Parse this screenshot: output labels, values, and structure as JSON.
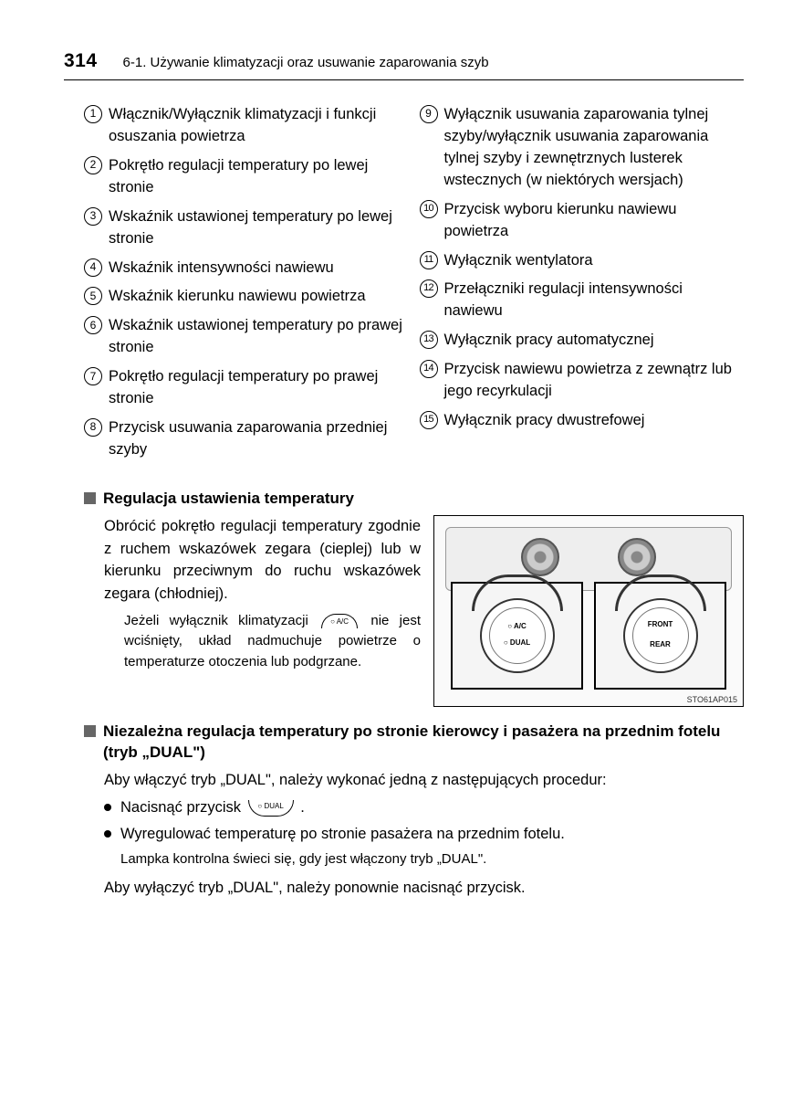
{
  "header": {
    "page_number": "314",
    "section": "6-1. Używanie klimatyzacji oraz usuwanie zaparowania szyb"
  },
  "list_left": [
    {
      "n": "1",
      "t": "Włącznik/Wyłącznik klimatyzacji i funkcji osuszania powietrza"
    },
    {
      "n": "2",
      "t": "Pokrętło regulacji temperatury po lewej stronie"
    },
    {
      "n": "3",
      "t": "Wskaźnik ustawionej temperatury po lewej stronie"
    },
    {
      "n": "4",
      "t": "Wskaźnik intensywności nawiewu"
    },
    {
      "n": "5",
      "t": "Wskaźnik kierunku nawiewu powietrza"
    },
    {
      "n": "6",
      "t": "Wskaźnik ustawionej temperatury po prawej stronie"
    },
    {
      "n": "7",
      "t": "Pokrętło regulacji temperatury po prawej stronie"
    },
    {
      "n": "8",
      "t": "Przycisk usuwania zaparowania przedniej szyby"
    }
  ],
  "list_right": [
    {
      "n": "9",
      "t": "Wyłącznik usuwania zaparowania tylnej szyby/wyłącznik usuwania zaparowania tylnej szyby i zewnętrznych lusterek wstecznych (w niektórych wersjach)"
    },
    {
      "n": "10",
      "t": "Przycisk wyboru kierunku nawiewu powietrza"
    },
    {
      "n": "11",
      "t": "Wyłącznik wentylatora"
    },
    {
      "n": "12",
      "t": "Przełączniki regulacji intensywności nawiewu"
    },
    {
      "n": "13",
      "t": "Wyłącznik pracy automatycznej"
    },
    {
      "n": "14",
      "t": "Przycisk nawiewu powietrza z zewnątrz lub jego recyrkulacji"
    },
    {
      "n": "15",
      "t": "Wyłącznik pracy dwustrefowej"
    }
  ],
  "sub1": {
    "title": "Regulacja ustawienia temperatury",
    "para": "Obrócić pokrętło regulacji temperatury zgodnie z ruchem wskazówek zegara (cieplej) lub w kierunku przeciwnym do ruchu wskazówek zegara (chłodniej).",
    "note_a": "Jeżeli wyłącznik klimatyzacji",
    "note_b": "nie jest wciśnięty, układ nadmuchuje powietrze o temperaturze otoczenia lub podgrzane.",
    "ac_label": "○ A/C"
  },
  "diagram": {
    "code": "STO61AP015",
    "knob_left_top": "○ A/C",
    "knob_left_bot": "○ DUAL",
    "knob_right_top": "FRONT",
    "knob_right_bot": "REAR"
  },
  "sub2": {
    "title": "Niezależna regulacja temperatury po stronie kierowcy i pasażera na przednim fotelu (tryb „DUAL\")",
    "intro": "Aby włączyć tryb „DUAL\", należy wykonać jedną z następujących procedur:",
    "b1": "Nacisnąć przycisk ",
    "b1_tail": ".",
    "dual_label": "○ DUAL",
    "b2": "Wyregulować temperaturę po stronie pasażera na przednim fotelu.",
    "note": "Lampka kontrolna świeci się, gdy jest włączony tryb „DUAL\".",
    "outro": "Aby wyłączyć tryb „DUAL\", należy ponownie nacisnąć przycisk."
  }
}
